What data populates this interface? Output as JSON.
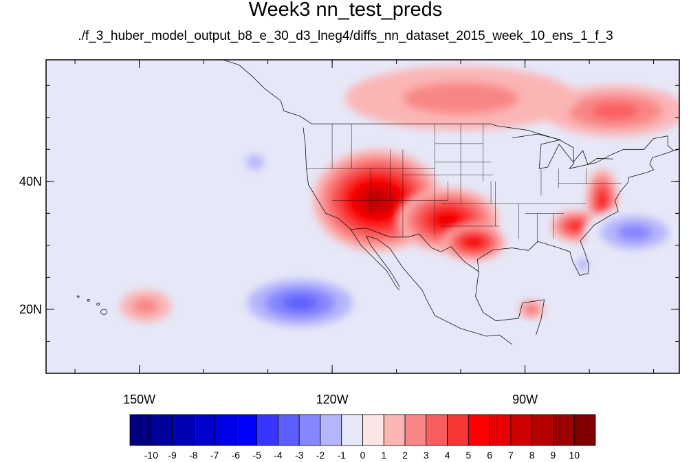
{
  "title": "Week3 nn_test_preds",
  "subtitle": "./f_3_huber_model_output_b8_e_30_d3_lneg4/diffs_nn_dataset_2015_week_10_ens_1_f_3",
  "map": {
    "projection": "cylindrical-equidistant",
    "lon_range": [
      -164.5,
      -66
    ],
    "lat_range": [
      10,
      59
    ],
    "x_ticks": [
      {
        "lon": -150,
        "label": "150W"
      },
      {
        "lon": -120,
        "label": "120W"
      },
      {
        "lon": -90,
        "label": "90W"
      }
    ],
    "y_ticks": [
      {
        "lat": 20,
        "label": "20N"
      },
      {
        "lat": 40,
        "label": "40N"
      }
    ],
    "background_color": "#e6e8f8",
    "regions": [
      {
        "name": "southwest-us-hot-core",
        "level": 10,
        "center": [
          -116.5,
          37.5
        ],
        "radius": [
          5.5,
          4
        ]
      },
      {
        "name": "southwest-us-hot",
        "level": 8,
        "center": [
          -113,
          37
        ],
        "radius": [
          10,
          8
        ]
      },
      {
        "name": "great-plains-warm",
        "level": 6,
        "center": [
          -102,
          34
        ],
        "radius": [
          8,
          5
        ]
      },
      {
        "name": "texas-warm",
        "level": 6,
        "center": [
          -98,
          30.5
        ],
        "radius": [
          5,
          3
        ]
      },
      {
        "name": "mid-atlantic-warm",
        "level": 5,
        "center": [
          -78,
          37
        ],
        "radius": [
          2.5,
          5
        ]
      },
      {
        "name": "southeast-warm",
        "level": 5,
        "center": [
          -82,
          33
        ],
        "radius": [
          4,
          2.5
        ]
      },
      {
        "name": "eastern-canada-warm",
        "level": 3,
        "center": [
          -76,
          51
        ],
        "radius": [
          11,
          4
        ]
      },
      {
        "name": "central-canada-warm",
        "level": 2,
        "center": [
          -100,
          53
        ],
        "radius": [
          18,
          5
        ]
      },
      {
        "name": "hawaii-warm",
        "level": 2,
        "center": [
          -149,
          20.5
        ],
        "radius": [
          4,
          2.5
        ]
      },
      {
        "name": "caribbean-warm",
        "level": 3,
        "center": [
          -89,
          20
        ],
        "radius": [
          2,
          1.5
        ]
      },
      {
        "name": "pacific-cold-core",
        "level": -6,
        "center": [
          -124,
          21
        ],
        "radius": [
          7,
          2.5
        ]
      },
      {
        "name": "pacific-cold",
        "level": -4,
        "center": [
          -125,
          21
        ],
        "radius": [
          11,
          5
        ]
      },
      {
        "name": "atlantic-cold-core",
        "level": -6,
        "center": [
          -74,
          32
        ],
        "radius": [
          4.5,
          2.5
        ]
      },
      {
        "name": "atlantic-cold",
        "level": -3,
        "center": [
          -73,
          32
        ],
        "radius": [
          8,
          4
        ]
      },
      {
        "name": "northeast-pacific-cool",
        "level": -2,
        "center": [
          -132,
          43
        ],
        "radius": [
          3,
          2.5
        ]
      },
      {
        "name": "florida-cool",
        "level": -3,
        "center": [
          -81,
          27
        ],
        "radius": [
          1.2,
          1.5
        ]
      }
    ]
  },
  "colorbar": {
    "labels": [
      "-10",
      "-9",
      "-8",
      "-7",
      "-6",
      "-5",
      "-4",
      "-3",
      "-2",
      "-1",
      "0",
      "1",
      "2",
      "3",
      "4",
      "5",
      "6",
      "7",
      "8",
      "9",
      "10"
    ],
    "colors": [
      "#00007f",
      "#00009a",
      "#0000b5",
      "#0000cf",
      "#0000e8",
      "#0000ff",
      "#3636ff",
      "#5e5eff",
      "#8686ff",
      "#b5b5fb",
      "#e6e8f8",
      "#fbe6e6",
      "#fbb5b5",
      "#f98686",
      "#f95e5e",
      "#f73636",
      "#ff0000",
      "#e80000",
      "#cf0000",
      "#b50000",
      "#9a0000",
      "#7f0000"
    ]
  }
}
